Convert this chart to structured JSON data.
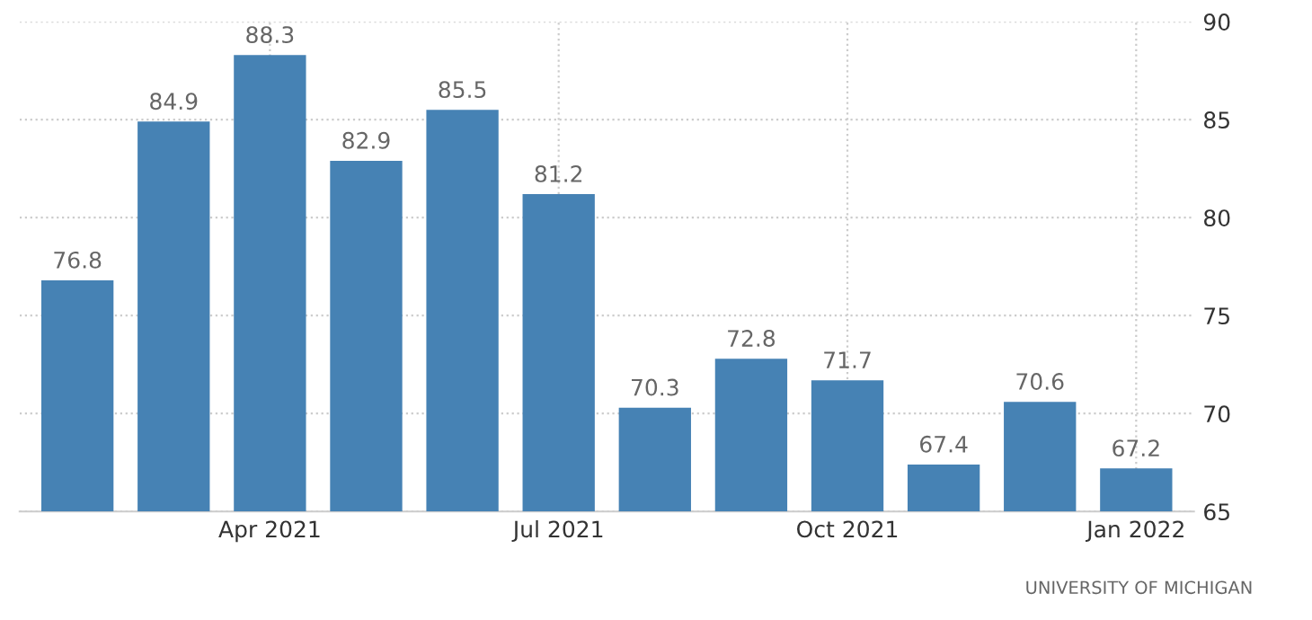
{
  "chart_data": {
    "type": "bar",
    "categories": [
      null,
      null,
      "Apr 2021",
      null,
      null,
      "Jul 2021",
      null,
      null,
      "Oct 2021",
      null,
      null,
      "Jan 2022"
    ],
    "values": [
      76.8,
      84.9,
      88.3,
      82.9,
      85.5,
      81.2,
      70.3,
      72.8,
      71.7,
      67.4,
      70.6,
      67.2
    ],
    "color": "#4682b4",
    "ylim": [
      65,
      90
    ],
    "yticks": [
      65,
      70,
      75,
      80,
      85,
      90
    ],
    "grid": true,
    "data_labels": true,
    "annotations": [
      "UNIVERSITY OF MICHIGAN"
    ]
  }
}
